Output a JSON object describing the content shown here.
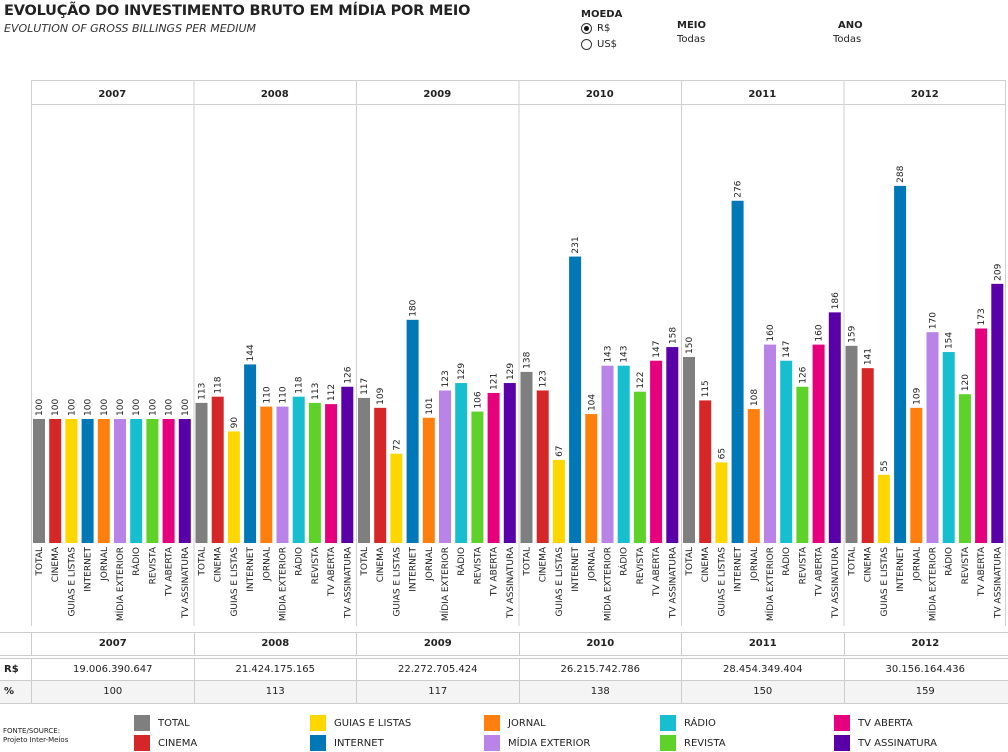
{
  "header": {
    "title": "EVOLUÇÃO DO INVESTIMENTO BRUTO EM MÍDIA POR MEIO",
    "subtitle": "EVOLUTION OF GROSS BILLINGS PER MEDIUM"
  },
  "controls": {
    "currency_label": "MOEDA",
    "currency_options": [
      "R$",
      "US$"
    ],
    "currency_selected": "R$",
    "medium_label": "MEIO",
    "medium_value": "Todas",
    "year_label": "ANO",
    "year_value": "Todas"
  },
  "chart_data": {
    "type": "bar",
    "title": "",
    "xlabel": "",
    "ylabel": "",
    "groups": [
      "2007",
      "2008",
      "2009",
      "2010",
      "2011",
      "2012"
    ],
    "categories": [
      "TOTAL",
      "CINEMA",
      "GUIAS E LISTAS",
      "INTERNET",
      "JORNAL",
      "MÍDIA EXTERIOR",
      "RÁDIO",
      "REVISTA",
      "TV ABERTA",
      "TV ASSINATURA"
    ],
    "values": [
      [
        100,
        100,
        100,
        100,
        100,
        100,
        100,
        100,
        100,
        100
      ],
      [
        113,
        118,
        90,
        144,
        110,
        110,
        118,
        113,
        112,
        126
      ],
      [
        117,
        109,
        72,
        180,
        101,
        123,
        129,
        106,
        121,
        129
      ],
      [
        138,
        123,
        67,
        231,
        104,
        143,
        143,
        122,
        147,
        158
      ],
      [
        150,
        115,
        65,
        276,
        108,
        160,
        147,
        126,
        160,
        186
      ],
      [
        159,
        141,
        55,
        288,
        109,
        170,
        154,
        120,
        173,
        209
      ]
    ],
    "colors": [
      "#7f7f7f",
      "#d62728",
      "#ffd700",
      "#0077b6",
      "#ff7f0e",
      "#b983e8",
      "#17becf",
      "#5fd22a",
      "#e6007e",
      "#5a00a8"
    ],
    "ylim": [
      0,
      310
    ],
    "grid": false,
    "legend_position": "bottom"
  },
  "summary": {
    "years": [
      "2007",
      "2008",
      "2009",
      "2010",
      "2011",
      "2012"
    ],
    "row_labels": [
      "R$",
      "%"
    ],
    "totals_brl": [
      "19.006.390.647",
      "21.424.175.165",
      "22.272.705.424",
      "26.215.742.786",
      "28.454.349.404",
      "30.156.164.436"
    ],
    "percent": [
      "100",
      "113",
      "117",
      "138",
      "150",
      "159"
    ]
  },
  "legend": {
    "items": [
      {
        "label": "TOTAL",
        "color": "#7f7f7f"
      },
      {
        "label": "CINEMA",
        "color": "#d62728"
      },
      {
        "label": "GUIAS E LISTAS",
        "color": "#ffd700"
      },
      {
        "label": "INTERNET",
        "color": "#0077b6"
      },
      {
        "label": "JORNAL",
        "color": "#ff7f0e"
      },
      {
        "label": "MÍDIA EXTERIOR",
        "color": "#b983e8"
      },
      {
        "label": "RÁDIO",
        "color": "#17becf"
      },
      {
        "label": "REVISTA",
        "color": "#5fd22a"
      },
      {
        "label": "TV ABERTA",
        "color": "#e6007e"
      },
      {
        "label": "TV ASSINATURA",
        "color": "#5a00a8"
      }
    ]
  },
  "source": {
    "label": "FONTE/SOURCE:",
    "value": "Projeto Inter-Meios"
  }
}
